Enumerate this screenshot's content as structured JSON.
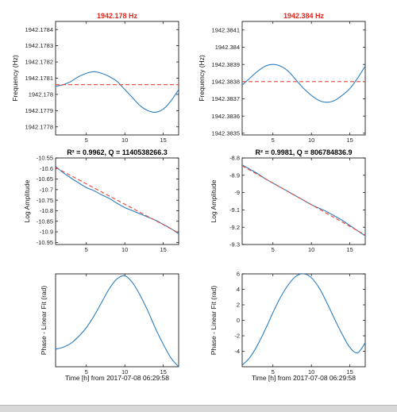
{
  "colors": {
    "data_line": "#2e7ebf",
    "fit_line": "#e8463a",
    "title_red": "#e8231a",
    "title_black": "#000000"
  },
  "footer_text": "",
  "chart_data": [
    {
      "id": "freq-left",
      "type": "line",
      "title": "1942.178 Hz",
      "title_color": "red",
      "xlabel": "",
      "ylabel": "Frequency (Hz)",
      "xlim": [
        1,
        17
      ],
      "ylim": [
        1942.17775,
        1942.17845
      ],
      "xticks": [
        5,
        10,
        15
      ],
      "xtick_labels": [
        "5",
        "10",
        "15"
      ],
      "yticks": [
        1942.1778,
        1942.1779,
        1942.178,
        1942.1781,
        1942.1782,
        1942.1783,
        1942.1784
      ],
      "ytick_labels": [
        "1942.1778",
        "1942.1779",
        "1942.178",
        "1942.1781",
        "1942.1782",
        "1942.1783",
        "1942.1784"
      ],
      "series": [
        {
          "role": "data",
          "x": [
            1,
            2,
            3,
            4,
            5,
            6,
            7,
            8,
            9,
            10,
            11,
            12,
            13,
            14,
            15,
            16,
            17
          ],
          "y": [
            1942.17805,
            1942.17806,
            1942.17808,
            1942.17811,
            1942.17813,
            1942.17814,
            1942.17813,
            1942.17811,
            1942.17808,
            1942.17803,
            1942.17798,
            1942.17793,
            1942.1779,
            1942.17789,
            1942.17791,
            1942.17796,
            1942.17803
          ]
        },
        {
          "role": "fit",
          "x": [
            1,
            17
          ],
          "y": [
            1942.17806,
            1942.17806
          ]
        }
      ]
    },
    {
      "id": "freq-right",
      "type": "line",
      "title": "1942.384 Hz",
      "title_color": "red",
      "xlabel": "",
      "ylabel": "Frequency (Hz)",
      "xlim": [
        1,
        17
      ],
      "ylim": [
        1942.38349,
        1942.38415
      ],
      "xticks": [
        5,
        10,
        15
      ],
      "xtick_labels": [
        "5",
        "10",
        "15"
      ],
      "yticks": [
        1942.3835,
        1942.3836,
        1942.3837,
        1942.3838,
        1942.3839,
        1942.384,
        1942.3841
      ],
      "ytick_labels": [
        "1942.3835",
        "1942.3836",
        "1942.3837",
        "1942.3838",
        "1942.3839",
        "1942.384",
        "1942.3841"
      ],
      "series": [
        {
          "role": "data",
          "x": [
            1,
            2,
            3,
            4,
            5,
            6,
            7,
            8,
            9,
            10,
            11,
            12,
            13,
            14,
            15,
            16,
            17
          ],
          "y": [
            1942.38378,
            1942.38382,
            1942.38386,
            1942.38389,
            1942.3839,
            1942.38389,
            1942.38386,
            1942.38381,
            1942.38376,
            1942.38372,
            1942.38369,
            1942.38368,
            1942.38369,
            1942.38372,
            1942.38376,
            1942.38382,
            1942.38389
          ]
        },
        {
          "role": "fit",
          "x": [
            1,
            17
          ],
          "y": [
            1942.3838,
            1942.3838
          ]
        }
      ]
    },
    {
      "id": "amp-left",
      "type": "line",
      "title": "R² = 0.9962, Q = 1140538266.3",
      "title_color": "black",
      "xlabel": "",
      "ylabel": "Log Amplitude",
      "xlim": [
        1,
        17
      ],
      "ylim": [
        -10.96,
        -10.55
      ],
      "xticks": [
        5,
        10,
        15
      ],
      "xtick_labels": [
        "5",
        "10",
        "15"
      ],
      "yticks": [
        -10.55,
        -10.6,
        -10.65,
        -10.7,
        -10.75,
        -10.8,
        -10.85,
        -10.9,
        -10.95
      ],
      "ytick_labels": [
        "-10.55",
        "-10.6",
        "-10.65",
        "-10.7",
        "-10.75",
        "-10.8",
        "-10.85",
        "-10.9",
        "-10.95"
      ],
      "series": [
        {
          "role": "data",
          "x": [
            1,
            2,
            3,
            4,
            5,
            6,
            7,
            8,
            9,
            10,
            11,
            12,
            13,
            14,
            15,
            16,
            17
          ],
          "y": [
            -10.59,
            -10.62,
            -10.645,
            -10.668,
            -10.69,
            -10.705,
            -10.725,
            -10.742,
            -10.765,
            -10.785,
            -10.8,
            -10.815,
            -10.83,
            -10.845,
            -10.865,
            -10.885,
            -10.91
          ]
        },
        {
          "role": "fit",
          "x": [
            1,
            17
          ],
          "y": [
            -10.595,
            -10.905
          ]
        }
      ]
    },
    {
      "id": "amp-right",
      "type": "line",
      "title": "R² = 0.9981, Q = 806784836.9",
      "title_color": "black",
      "xlabel": "",
      "ylabel": "Log Amplitude",
      "xlim": [
        1,
        17
      ],
      "ylim": [
        -9.3,
        -8.8
      ],
      "xticks": [
        5,
        10,
        15
      ],
      "xtick_labels": [
        "5",
        "10",
        "15"
      ],
      "yticks": [
        -8.8,
        -8.9,
        -9,
        -9.1,
        -9.2,
        -9.3
      ],
      "ytick_labels": [
        "-8.8",
        "-8.9",
        "-9",
        "-9.1",
        "-9.2",
        "-9.3"
      ],
      "series": [
        {
          "role": "data",
          "x": [
            1,
            2,
            3,
            4,
            5,
            6,
            7,
            8,
            9,
            10,
            11,
            12,
            13,
            14,
            15,
            16,
            17
          ],
          "y": [
            -8.84,
            -8.865,
            -8.89,
            -8.92,
            -8.945,
            -8.97,
            -8.995,
            -9.02,
            -9.045,
            -9.07,
            -9.09,
            -9.11,
            -9.135,
            -9.16,
            -9.19,
            -9.22,
            -9.25
          ]
        },
        {
          "role": "fit",
          "x": [
            1,
            17
          ],
          "y": [
            -8.845,
            -9.245
          ]
        }
      ]
    },
    {
      "id": "phase-left",
      "type": "line",
      "title": "",
      "title_color": "black",
      "xlabel": "Time [h] from 2017-07-08 06:29:58",
      "ylabel": "Phase - Linear Fit (rad)",
      "xlim": [
        1,
        17
      ],
      "ylim": [
        -5,
        4.5
      ],
      "xticks": [
        5,
        10,
        15
      ],
      "xtick_labels": [
        "5",
        "10",
        "15"
      ],
      "yticks": [],
      "ytick_labels": [],
      "series": [
        {
          "role": "data",
          "x": [
            1,
            2,
            3,
            4,
            5,
            6,
            7,
            8,
            9,
            10,
            11,
            12,
            13,
            14,
            15,
            16,
            17
          ],
          "y": [
            -3.2,
            -3.0,
            -2.6,
            -1.9,
            -1.0,
            0.2,
            1.6,
            3.0,
            4.0,
            4.3,
            3.6,
            2.3,
            0.7,
            -1.1,
            -2.7,
            -4.1,
            -5.0
          ]
        }
      ]
    },
    {
      "id": "phase-right",
      "type": "line",
      "title": "",
      "title_color": "black",
      "xlabel": "Time [h] from 2017-07-08 06:29:58",
      "ylabel": "Phase - Linear Fit (rad)",
      "xlim": [
        1,
        17
      ],
      "ylim": [
        -6,
        6
      ],
      "xticks": [
        5,
        10,
        15
      ],
      "xtick_labels": [
        "5",
        "10",
        "15"
      ],
      "yticks": [
        -4,
        -2,
        0,
        2,
        4,
        6
      ],
      "ytick_labels": [
        "-4",
        "-2",
        "0",
        "2",
        "4",
        "6"
      ],
      "series": [
        {
          "role": "data",
          "x": [
            1,
            2,
            3,
            4,
            5,
            6,
            7,
            8,
            9,
            10,
            11,
            12,
            13,
            14,
            15,
            16,
            17
          ],
          "y": [
            -5.8,
            -4.8,
            -3.2,
            -1.2,
            1.0,
            3.0,
            4.6,
            5.7,
            6.0,
            5.5,
            4.2,
            2.3,
            0.2,
            -1.8,
            -3.5,
            -4.2,
            -2.9
          ]
        }
      ]
    }
  ]
}
